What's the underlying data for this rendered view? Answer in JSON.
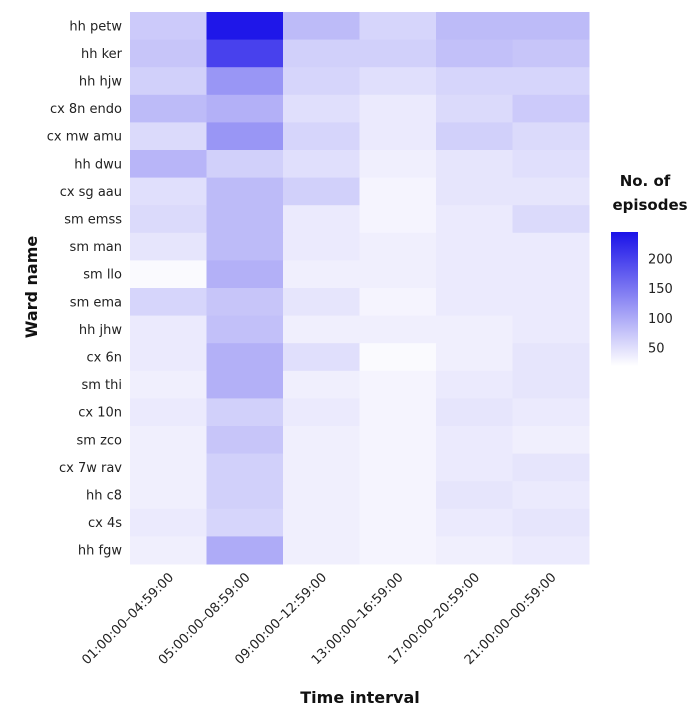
{
  "chart_data": {
    "type": "heatmap",
    "xlabel": "Time interval",
    "ylabel": "Ward name",
    "x_categories": [
      "01:00:00–04:59:00",
      "05:00:00–08:59:00",
      "09:00:00–12:59:00",
      "13:00:00–16:59:00",
      "17:00:00–20:59:00",
      "21:00:00–00:59:00"
    ],
    "y_categories": [
      "hh petw",
      "hh ker",
      "hh hjw",
      "cx 8n endo",
      "cx mw amu",
      "hh dwu",
      "cx sg aau",
      "sm emss",
      "sm man",
      "sm llo",
      "sm ema",
      "hh jhw",
      "cx 6n",
      "sm thi",
      "cx 10n",
      "sm zco",
      "cx 7w rav",
      "hh c8",
      "cx 4s",
      "hh fgw"
    ],
    "values": [
      [
        70,
        240,
        85,
        60,
        85,
        85
      ],
      [
        75,
        200,
        65,
        65,
        80,
        75
      ],
      [
        65,
        120,
        60,
        50,
        60,
        60
      ],
      [
        85,
        95,
        50,
        40,
        55,
        70
      ],
      [
        55,
        120,
        60,
        40,
        65,
        55
      ],
      [
        90,
        65,
        50,
        35,
        45,
        50
      ],
      [
        50,
        85,
        65,
        30,
        45,
        45
      ],
      [
        55,
        85,
        40,
        30,
        40,
        55
      ],
      [
        45,
        85,
        40,
        35,
        40,
        40
      ],
      [
        25,
        95,
        35,
        35,
        40,
        40
      ],
      [
        60,
        75,
        45,
        30,
        40,
        40
      ],
      [
        40,
        80,
        35,
        35,
        35,
        40
      ],
      [
        40,
        95,
        50,
        25,
        35,
        45
      ],
      [
        35,
        95,
        35,
        30,
        40,
        45
      ],
      [
        40,
        65,
        40,
        30,
        45,
        40
      ],
      [
        35,
        75,
        35,
        30,
        40,
        35
      ],
      [
        35,
        65,
        35,
        30,
        40,
        45
      ],
      [
        35,
        65,
        35,
        30,
        45,
        40
      ],
      [
        40,
        60,
        35,
        30,
        40,
        45
      ],
      [
        35,
        100,
        35,
        30,
        35,
        40
      ]
    ],
    "colorbar": {
      "title_lines": [
        "No. of",
        "episodes"
      ],
      "ticks": [
        50,
        100,
        150,
        200
      ],
      "range": [
        20,
        245
      ],
      "color_low": "#ffffff",
      "color_high": "#1a12e8"
    }
  }
}
